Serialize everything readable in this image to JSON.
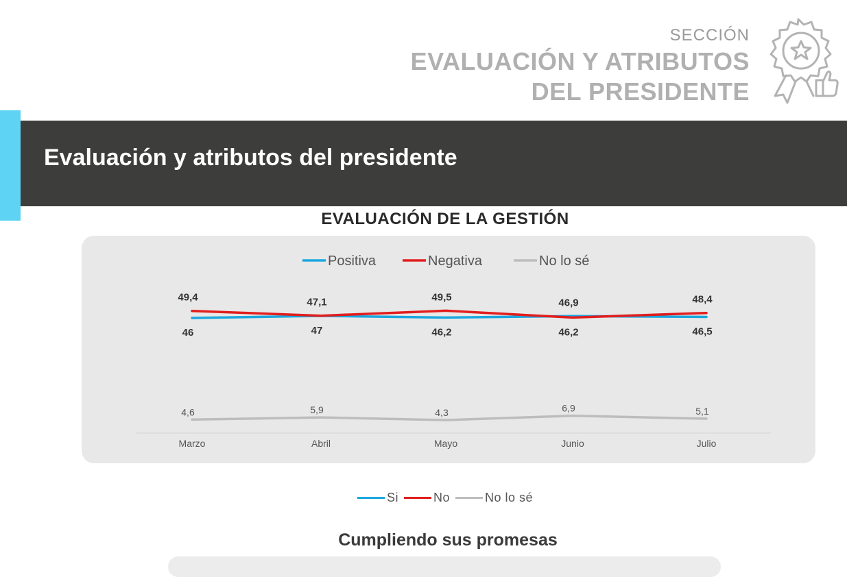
{
  "section": {
    "label": "SECCIÓN",
    "title_line1": "EVALUACIÓN Y ATRIBUTOS",
    "title_line2": "DEL PRESIDENTE"
  },
  "band": {
    "title": "Evaluación y atributos del presidente"
  },
  "colors": {
    "accent": "#5ed3f3",
    "positive": "#1aa7df",
    "negative": "#e21d1d",
    "neutral": "#bdbdbd",
    "band": "#3d3d3c"
  },
  "chart_data": {
    "type": "line",
    "title": "EVALUACIÓN DE LA GESTIÓN",
    "categories": [
      "Marzo",
      "Abril",
      "Mayo",
      "Junio",
      "Julio"
    ],
    "series": [
      {
        "name": "Positiva",
        "values": [
          46,
          47,
          46.2,
          46.9,
          46.5
        ],
        "labels": [
          "46",
          "47",
          "46,2",
          "46,9",
          "46,5"
        ]
      },
      {
        "name": "Negativa",
        "values": [
          49.4,
          47.1,
          49.5,
          46.2,
          48.4
        ],
        "labels": [
          "49,4",
          "47,1",
          "49,5",
          "46,2",
          "48,4"
        ]
      },
      {
        "name": "No lo sé",
        "values": [
          4.6,
          5.9,
          4.3,
          6.9,
          5.1
        ],
        "labels": [
          "4,6",
          "5,9",
          "4,3",
          "6,9",
          "5,1"
        ]
      }
    ],
    "legend_position": "top-center",
    "xlabel": "",
    "ylabel": ""
  },
  "second_legend": {
    "items": [
      "Si",
      "No",
      "No lo sé"
    ]
  },
  "next_chart": {
    "title": "Cumpliendo sus promesas"
  }
}
